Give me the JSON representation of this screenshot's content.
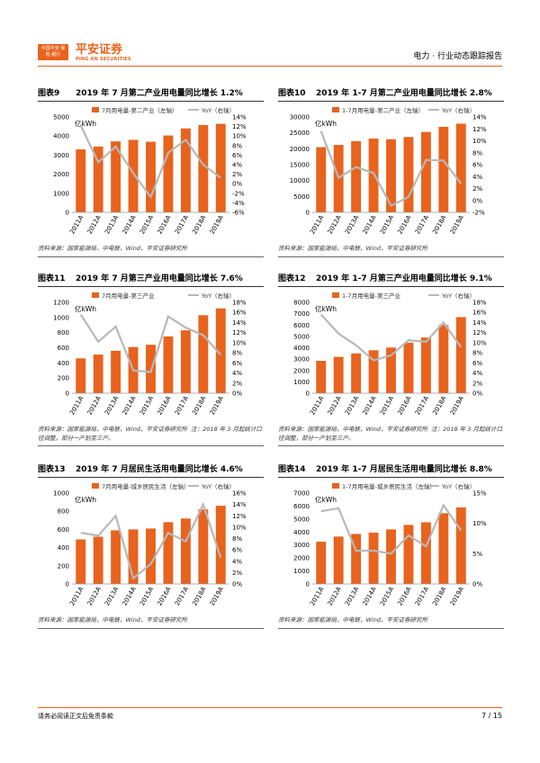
{
  "header": {
    "logo_box_text": "中国平安 保险·银行",
    "brand": "平安证券",
    "brand_sub": "PING AN SECURITIES",
    "title": "电力 · 行业动态跟踪报告"
  },
  "panels": [
    {
      "fig": "图表9",
      "title": "2019 年 7 月第二产业用电量同比增长 1.2%",
      "source": "资料来源：国家能源局，中电联，Wind，平安证券研究所",
      "source2": "",
      "legend_bar": "7月用电量-第二产业（左轴）",
      "legend_line": "YoY（右轴）",
      "unit": "亿kWh",
      "colors": {
        "bar": "#e8631d",
        "line": "#b8b8b8"
      }
    },
    {
      "fig": "图表10",
      "title": "2019 年 1-7 月第二产业用电量同比增长 2.8%",
      "source": "资料来源：国家能源局，中电联，Wind，平安证券研究所",
      "source2": "",
      "legend_bar": "1-7月用电量-第二产业（左轴）",
      "legend_line": "YoY（右轴）",
      "unit": "亿kWh",
      "colors": {
        "bar": "#e8631d",
        "line": "#b8b8b8"
      }
    },
    {
      "fig": "图表11",
      "title": "2019 年 7 月第三产业用电量同比增长 7.6%",
      "source": "资料来源：国家能源局，中电联，Wind，平安证券研究所",
      "source2": "注：2018 年 3 月起统计口径调整，部分一产划至三产。",
      "legend_bar": "7月用电量-第三产业",
      "legend_line": "YoY（右轴）",
      "unit": "亿kWh",
      "colors": {
        "bar": "#e8631d",
        "line": "#b8b8b8"
      }
    },
    {
      "fig": "图表12",
      "title": "2019 年 1-7 月第三产业用电量同比增长 9.1%",
      "source": "资料来源：国家能源局，中电联，Wind，平安证券研究所",
      "source2": "注：2018 年 3 月起统计口径调整，部分一产划至三产。",
      "legend_bar": "1-7月用电量-第三产业",
      "legend_line": "YoY（右轴）",
      "unit": "亿kWh",
      "colors": {
        "bar": "#e8631d",
        "line": "#b8b8b8"
      }
    },
    {
      "fig": "图表13",
      "title": "2019 年 7 月居民生活用电量同比增长 4.6%",
      "source": "资料来源：国家能源局，中电联，Wind，平安证券研究所",
      "source2": "",
      "legend_bar": "7月用电量-城乡居民生活（左轴）",
      "legend_line": "YoY（右轴）",
      "unit": "亿kWh",
      "colors": {
        "bar": "#e8631d",
        "line": "#b8b8b8"
      }
    },
    {
      "fig": "图表14",
      "title": "2019 年 1-7 月居民生活用电量同比增长 8.8%",
      "source": "资料来源：国家能源局，中电联，Wind，平安证券研究所",
      "source2": "",
      "legend_bar": "1-7月用电量-城乡居民生活（左轴）",
      "legend_line": "YoY（右轴）",
      "unit": "亿kWh",
      "colors": {
        "bar": "#e8631d",
        "line": "#b8b8b8"
      }
    }
  ],
  "footer": {
    "disclaimer": "请务必阅读正文后免责条款",
    "page": "7 / 15"
  },
  "chart_data": [
    {
      "type": "bar",
      "categories": [
        "2011A",
        "2012A",
        "2013A",
        "2014A",
        "2015A",
        "2016A",
        "2017A",
        "2018A",
        "2019A"
      ],
      "series": [
        {
          "name": "7月用电量-第二产业（左轴）",
          "axis": "left",
          "values": [
            3300,
            3450,
            3720,
            3800,
            3700,
            4030,
            4400,
            4580,
            4640
          ]
        },
        {
          "name": "YoY（右轴）",
          "axis": "right",
          "type": "line",
          "values": [
            12.2,
            4.5,
            7.8,
            2.2,
            -2.8,
            6.5,
            9.2,
            4.0,
            1.2
          ]
        }
      ],
      "ylim": [
        0,
        5000
      ],
      "yticks": [
        0,
        1000,
        2000,
        3000,
        4000,
        5000
      ],
      "y2lim": [
        -6,
        14
      ],
      "y2ticks": [
        -6,
        -4,
        -2,
        0,
        2,
        4,
        6,
        8,
        10,
        12,
        14
      ],
      "y2unit": "%",
      "legend": "top",
      "grid": false
    },
    {
      "type": "bar",
      "categories": [
        "2011A",
        "2012A",
        "2013A",
        "2014A",
        "2015A",
        "2016A",
        "2017A",
        "2018A",
        "2019A"
      ],
      "series": [
        {
          "name": "1-7月用电量-第二产业（左轴）",
          "axis": "left",
          "values": [
            20500,
            21200,
            22400,
            23200,
            23000,
            23700,
            25300,
            26900,
            27900
          ]
        },
        {
          "name": "YoY（右轴）",
          "axis": "right",
          "type": "line",
          "values": [
            11.6,
            3.8,
            5.6,
            4.6,
            -0.9,
            0.6,
            6.8,
            6.7,
            2.8
          ]
        }
      ],
      "ylim": [
        0,
        30000
      ],
      "yticks": [
        0,
        5000,
        10000,
        15000,
        20000,
        25000,
        30000
      ],
      "y2lim": [
        -2,
        14
      ],
      "y2ticks": [
        -2,
        0,
        2,
        4,
        6,
        8,
        10,
        12,
        14
      ],
      "y2unit": "%",
      "legend": "top",
      "grid": false
    },
    {
      "type": "bar",
      "categories": [
        "2011A",
        "2012A",
        "2013A",
        "2014A",
        "2015A",
        "2016A",
        "2017A",
        "2018A",
        "2019A"
      ],
      "series": [
        {
          "name": "7月用电量-第三产业",
          "axis": "left",
          "values": [
            460,
            510,
            560,
            610,
            640,
            750,
            830,
            1030,
            1120
          ]
        },
        {
          "name": "YoY（右轴）",
          "axis": "right",
          "type": "line",
          "values": [
            15.6,
            10.2,
            13.2,
            4.5,
            4.2,
            15.2,
            13.0,
            11.5,
            7.6
          ]
        }
      ],
      "ylim": [
        0,
        1200
      ],
      "yticks": [
        0,
        200,
        400,
        600,
        800,
        1000,
        1200
      ],
      "y2lim": [
        0,
        18
      ],
      "y2ticks": [
        0,
        2,
        4,
        6,
        8,
        10,
        12,
        14,
        16,
        18
      ],
      "y2unit": "%",
      "legend": "top",
      "grid": false
    },
    {
      "type": "bar",
      "categories": [
        "2011A",
        "2012A",
        "2013A",
        "2014A",
        "2015A",
        "2016A",
        "2017A",
        "2018A",
        "2019A"
      ],
      "series": [
        {
          "name": "1-7月用电量-第三产业",
          "axis": "left",
          "values": [
            2850,
            3200,
            3500,
            3780,
            4020,
            4450,
            4900,
            6000,
            6700
          ]
        },
        {
          "name": "YoY（右轴）",
          "axis": "right",
          "type": "line",
          "values": [
            15.6,
            11.8,
            9.5,
            6.5,
            7.5,
            10.5,
            10.2,
            14.0,
            9.1
          ]
        }
      ],
      "ylim": [
        0,
        8000
      ],
      "yticks": [
        0,
        1000,
        2000,
        3000,
        4000,
        5000,
        6000,
        7000,
        8000
      ],
      "y2lim": [
        0,
        18
      ],
      "y2ticks": [
        0,
        2,
        4,
        6,
        8,
        10,
        12,
        14,
        16,
        18
      ],
      "y2unit": "%",
      "legend": "top",
      "grid": false
    },
    {
      "type": "bar",
      "categories": [
        "2011A",
        "2012A",
        "2013A",
        "2014A",
        "2015A",
        "2016A",
        "2017A",
        "2018A",
        "2019A"
      ],
      "series": [
        {
          "name": "7月用电量-城乡居民生活（左轴）",
          "axis": "left",
          "values": [
            490,
            520,
            590,
            600,
            610,
            680,
            720,
            820,
            860
          ]
        },
        {
          "name": "YoY（右轴）",
          "axis": "right",
          "type": "line",
          "values": [
            9.0,
            8.5,
            12.0,
            1.0,
            3.5,
            9.0,
            7.5,
            14.0,
            4.6
          ]
        }
      ],
      "ylim": [
        0,
        1000
      ],
      "yticks": [
        0,
        200,
        400,
        600,
        800,
        1000
      ],
      "y2lim": [
        0,
        16
      ],
      "y2ticks": [
        0,
        2,
        4,
        6,
        8,
        10,
        12,
        14,
        16
      ],
      "y2unit": "%",
      "legend": "top",
      "grid": false
    },
    {
      "type": "bar",
      "categories": [
        "2011A",
        "2012A",
        "2013A",
        "2014A",
        "2015A",
        "2016A",
        "2017A",
        "2018A",
        "2019A"
      ],
      "series": [
        {
          "name": "1-7月用电量-城乡居民生活（左轴）",
          "axis": "left",
          "values": [
            3250,
            3650,
            3850,
            3950,
            4200,
            4550,
            4750,
            5450,
            5900
          ]
        },
        {
          "name": "YoY（右轴）",
          "axis": "right",
          "type": "line",
          "values": [
            12.0,
            12.5,
            5.5,
            5.5,
            5.0,
            8.0,
            6.2,
            13.0,
            8.8
          ]
        }
      ],
      "ylim": [
        0,
        7000
      ],
      "yticks": [
        0,
        1000,
        2000,
        3000,
        4000,
        5000,
        6000,
        7000
      ],
      "y2lim": [
        0,
        15
      ],
      "y2ticks": [
        0,
        5,
        10,
        15
      ],
      "y2unit": "%",
      "legend": "top",
      "grid": false
    }
  ]
}
